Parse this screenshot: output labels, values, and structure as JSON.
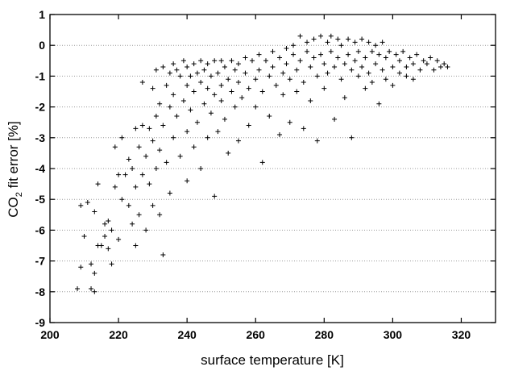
{
  "chart_data": {
    "type": "scatter",
    "marker": "+",
    "color": "#000000",
    "xlabel": "surface temperature [K]",
    "ylabel": [
      "CO",
      "2",
      " fit error [%]"
    ],
    "xlim": [
      200,
      330
    ],
    "xticks": [
      200,
      220,
      240,
      260,
      280,
      300,
      320
    ],
    "ylim": [
      -9,
      1
    ],
    "yticks": [
      1,
      0,
      -1,
      -2,
      -3,
      -4,
      -5,
      -6,
      -7,
      -8,
      -9
    ],
    "grid": true,
    "x": [
      208,
      209,
      209,
      210,
      211,
      212,
      212,
      213,
      213,
      213,
      214,
      214,
      215,
      216,
      216,
      217,
      217,
      218,
      218,
      219,
      219,
      220,
      220,
      221,
      221,
      222,
      223,
      223,
      224,
      224,
      225,
      225,
      225,
      226,
      226,
      227,
      227,
      227,
      228,
      228,
      229,
      229,
      230,
      230,
      230,
      231,
      231,
      231,
      232,
      232,
      232,
      233,
      233,
      233,
      234,
      234,
      235,
      235,
      235,
      236,
      236,
      236,
      237,
      237,
      238,
      238,
      239,
      239,
      240,
      240,
      240,
      240,
      241,
      241,
      242,
      242,
      242,
      243,
      243,
      244,
      244,
      244,
      245,
      245,
      246,
      246,
      246,
      247,
      247,
      248,
      248,
      248,
      249,
      249,
      250,
      250,
      250,
      251,
      251,
      252,
      252,
      253,
      253,
      254,
      254,
      255,
      255,
      255,
      256,
      257,
      257,
      258,
      258,
      259,
      260,
      260,
      261,
      261,
      262,
      262,
      263,
      264,
      264,
      265,
      265,
      266,
      267,
      267,
      268,
      268,
      269,
      269,
      270,
      270,
      271,
      271,
      272,
      272,
      273,
      273,
      274,
      274,
      275,
      275,
      276,
      276,
      277,
      277,
      278,
      278,
      279,
      279,
      280,
      280,
      281,
      281,
      282,
      282,
      283,
      283,
      284,
      284,
      285,
      285,
      286,
      286,
      287,
      287,
      288,
      288,
      289,
      289,
      290,
      290,
      291,
      291,
      292,
      292,
      293,
      293,
      294,
      294,
      295,
      295,
      296,
      296,
      297,
      297,
      298,
      298,
      299,
      300,
      300,
      301,
      302,
      302,
      303,
      304,
      304,
      305,
      306,
      306,
      307,
      308,
      309,
      310,
      311,
      312,
      313,
      314,
      315,
      316
    ],
    "values": [
      -7.9,
      -7.2,
      -5.2,
      -6.2,
      -5.1,
      -7.1,
      -7.9,
      -8.0,
      -7.4,
      -5.4,
      -4.5,
      -6.5,
      -6.5,
      -6.2,
      -5.8,
      -6.6,
      -5.7,
      -7.1,
      -6.0,
      -3.3,
      -4.6,
      -4.2,
      -6.3,
      -3.0,
      -5.0,
      -4.2,
      -5.2,
      -3.7,
      -4.0,
      -5.8,
      -2.7,
      -4.6,
      -6.5,
      -3.3,
      -5.5,
      -1.2,
      -2.6,
      -4.2,
      -3.6,
      -6.0,
      -2.7,
      -4.5,
      -1.4,
      -3.1,
      -5.2,
      -0.8,
      -2.3,
      -4.0,
      -1.9,
      -3.4,
      -5.5,
      -0.7,
      -2.6,
      -6.8,
      -1.3,
      -3.8,
      -0.9,
      -2.0,
      -4.8,
      -0.6,
      -1.6,
      -3.0,
      -0.8,
      -2.3,
      -1.0,
      -3.6,
      -0.5,
      -1.8,
      -0.7,
      -1.3,
      -2.8,
      -4.4,
      -1.0,
      -2.1,
      -0.6,
      -1.5,
      -3.3,
      -0.9,
      -2.5,
      -0.5,
      -1.2,
      -4.0,
      -0.8,
      -1.9,
      -0.6,
      -1.4,
      -3.0,
      -1.0,
      -2.2,
      -0.5,
      -1.6,
      -4.9,
      -0.9,
      -2.8,
      -0.5,
      -1.3,
      -1.8,
      -0.7,
      -2.4,
      -1.1,
      -3.5,
      -0.5,
      -1.5,
      -0.8,
      -2.0,
      -0.6,
      -1.2,
      -3.1,
      -1.7,
      -0.4,
      -0.9,
      -1.4,
      -2.6,
      -0.5,
      -1.1,
      -2.0,
      -0.3,
      -0.8,
      -1.5,
      -3.8,
      -0.5,
      -1.0,
      -2.3,
      -0.2,
      -0.7,
      -1.3,
      -0.4,
      -2.9,
      -0.9,
      -1.6,
      -0.1,
      -0.6,
      -1.1,
      -2.5,
      -0.3,
      0.0,
      -0.8,
      -1.5,
      0.3,
      -0.5,
      -1.2,
      -2.7,
      -0.2,
      0.1,
      -0.7,
      -1.8,
      0.2,
      -0.4,
      -1.0,
      -3.1,
      0.3,
      -0.3,
      -0.6,
      -1.4,
      0.1,
      -0.9,
      0.3,
      -0.2,
      -0.7,
      -2.4,
      0.2,
      -0.4,
      -1.1,
      0.0,
      -0.6,
      -1.7,
      0.2,
      -0.3,
      -0.8,
      -3.0,
      0.1,
      -0.5,
      -1.0,
      -0.2,
      0.2,
      -0.7,
      -1.4,
      -0.4,
      0.1,
      -0.9,
      -0.2,
      -1.2,
      0.0,
      -0.6,
      -0.3,
      -1.9,
      -0.8,
      0.1,
      -0.4,
      -1.1,
      -0.2,
      -0.7,
      -1.3,
      -0.3,
      -0.9,
      -0.5,
      -0.2,
      -0.7,
      -1.0,
      -0.4,
      -0.6,
      -1.1,
      -0.3,
      -0.8,
      -0.5,
      -0.6,
      -0.4,
      -0.8,
      -0.5,
      -0.7,
      -0.6,
      -0.7
    ]
  }
}
